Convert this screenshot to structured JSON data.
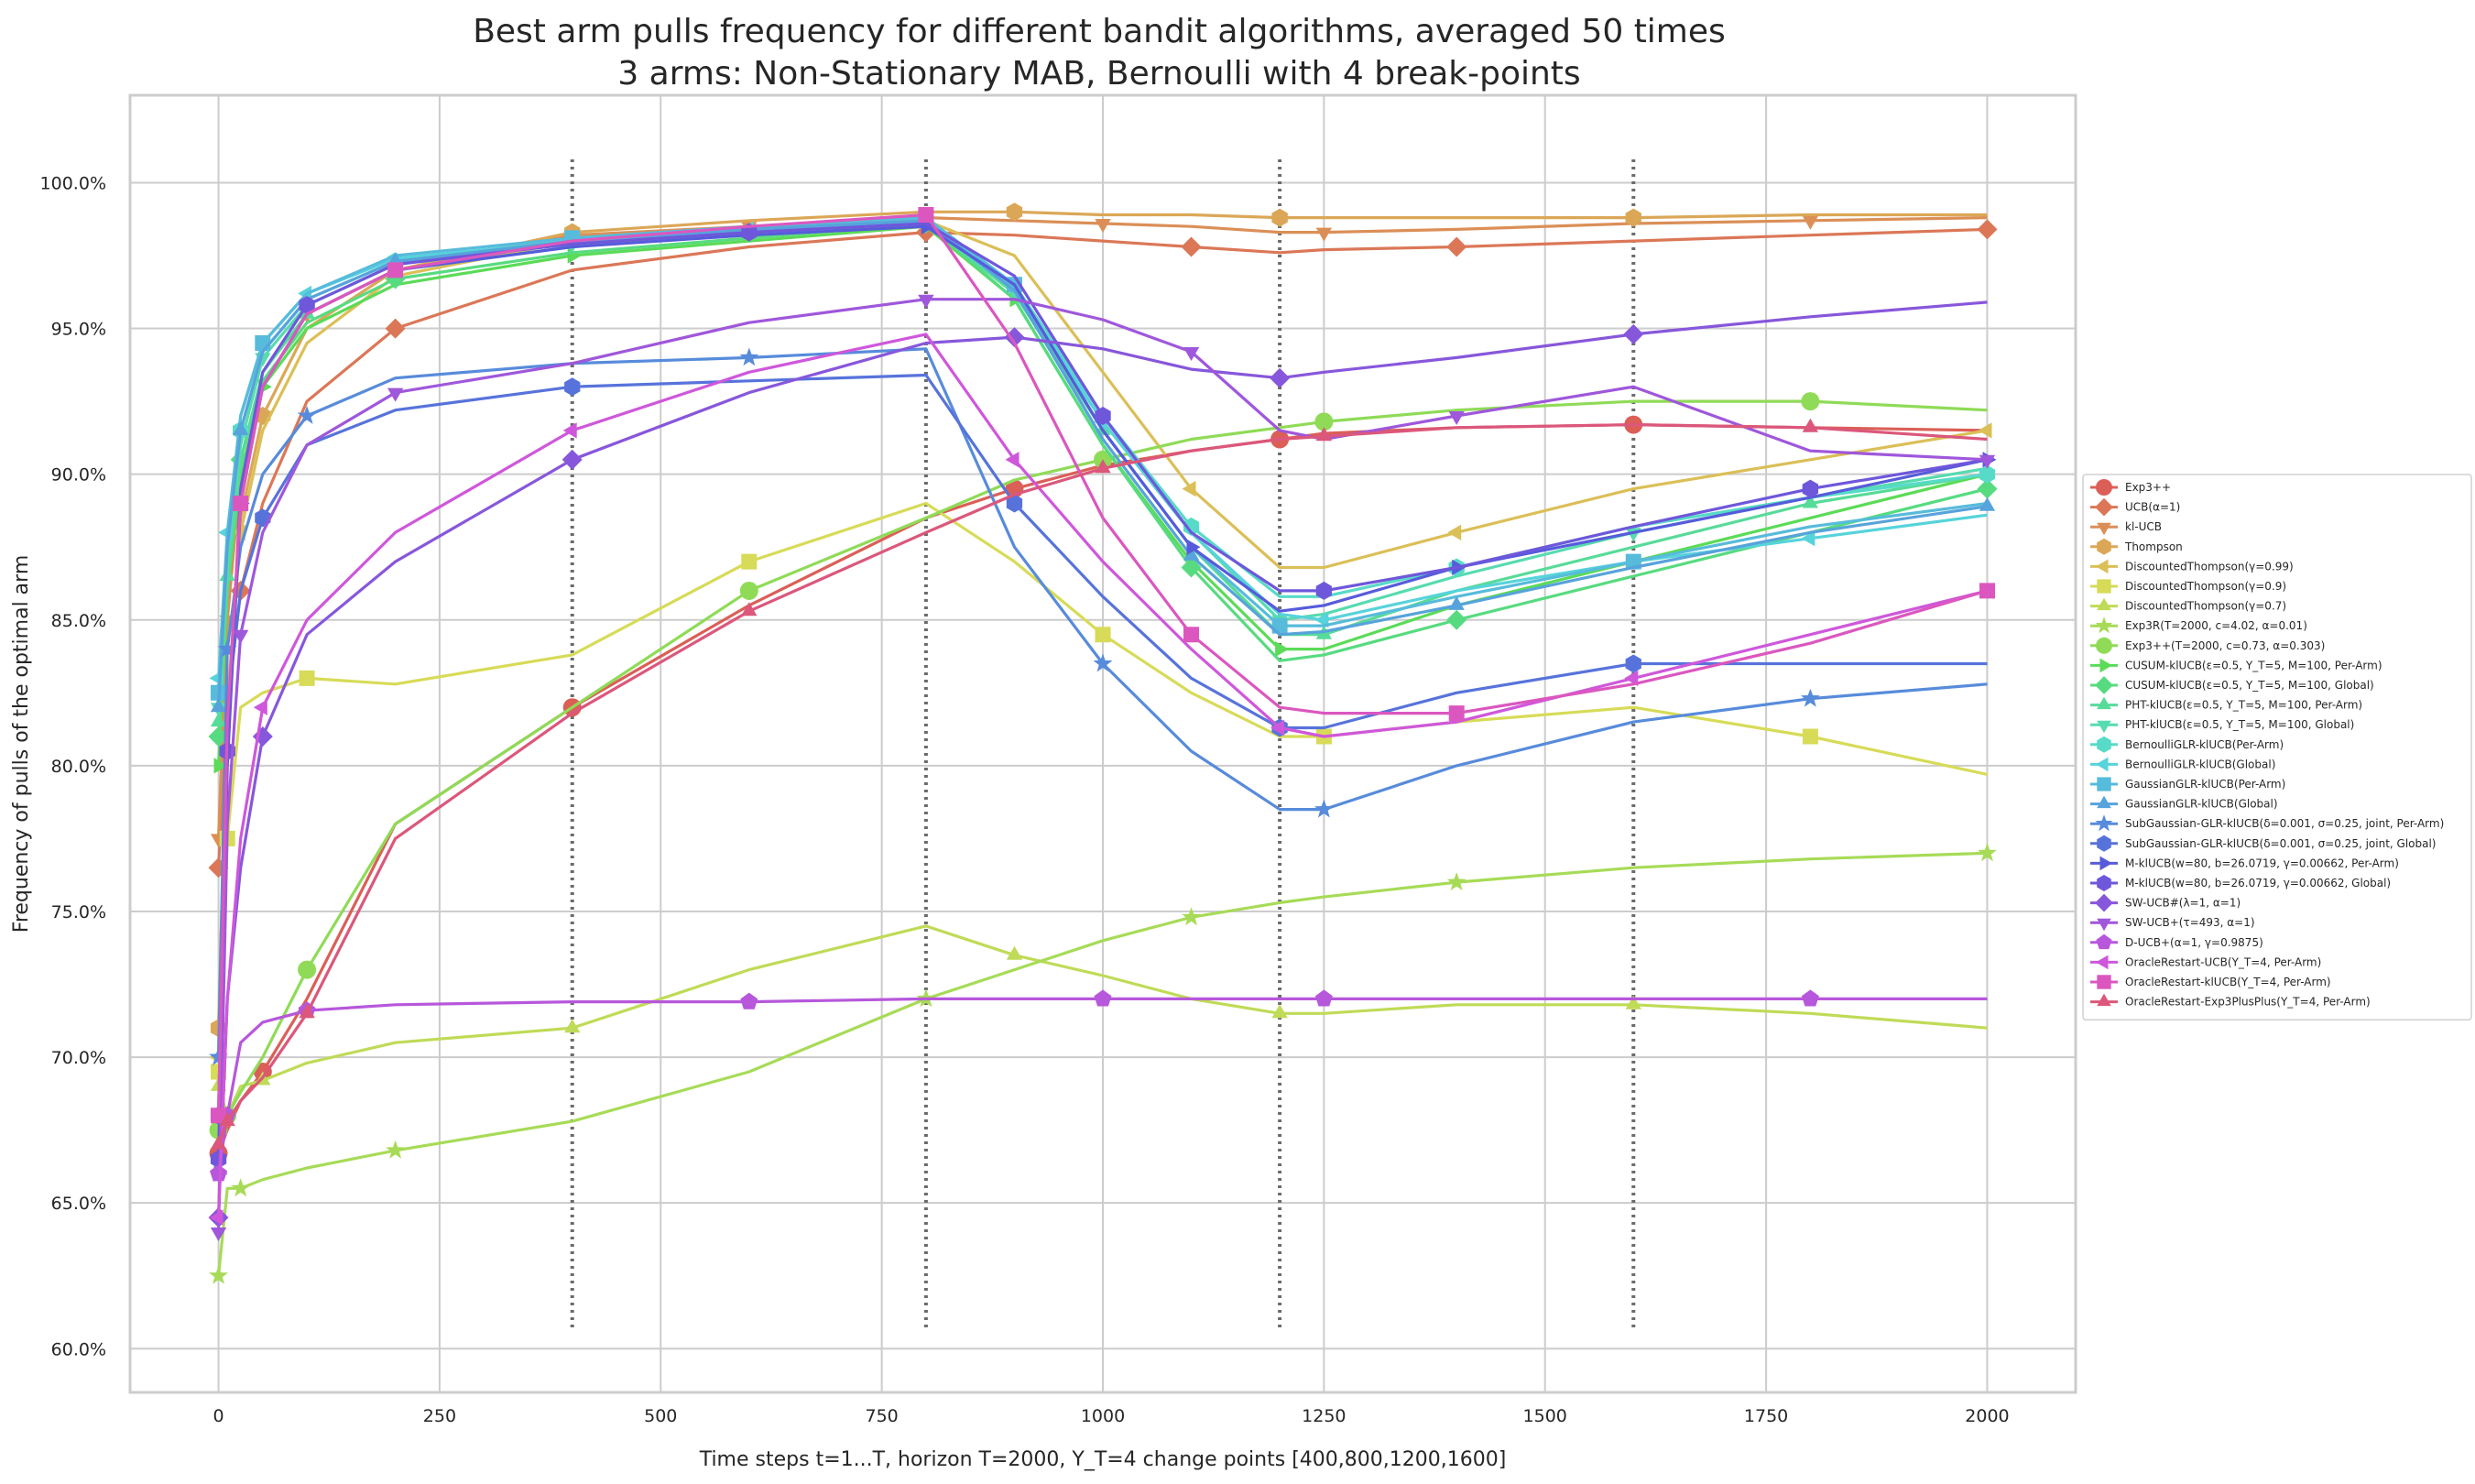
{
  "chart_data": {
    "type": "line",
    "title_line1": "Best arm pulls frequency for different bandit algorithms, averaged 50 times",
    "title_line2": "3 arms: Non-Stationary MAB, Bernoulli with 4 break-points",
    "xlabel": "Time steps t=1...T, horizon T=2000, Υ_T=4 change points [400,800,1200,1600]",
    "ylabel": "Frequency of pulls of the optimal arm",
    "xlim": [
      -100,
      2100
    ],
    "ylim": [
      58.5,
      103
    ],
    "x_ticks": [
      0,
      250,
      500,
      750,
      1000,
      1250,
      1500,
      1750,
      2000
    ],
    "y_ticks": [
      60,
      65,
      70,
      75,
      80,
      85,
      90,
      95,
      100
    ],
    "y_tick_labels": [
      "60.0%",
      "65.0%",
      "70.0%",
      "75.0%",
      "80.0%",
      "85.0%",
      "90.0%",
      "95.0%",
      "100.0%"
    ],
    "breakpoints": [
      400,
      800,
      1200,
      1600
    ],
    "grid": true,
    "legend_position": "right",
    "x": [
      0,
      10,
      25,
      50,
      100,
      200,
      400,
      600,
      800,
      900,
      1000,
      1100,
      1200,
      1250,
      1400,
      1600,
      1800,
      2000
    ],
    "series": [
      {
        "name": "Exp3++",
        "color": "#db5f57",
        "marker": "circle",
        "values": [
          66.7,
          67.5,
          68.5,
          69.5,
          72.0,
          78.0,
          82.0,
          85.5,
          88.5,
          89.5,
          90.3,
          90.8,
          91.2,
          91.4,
          91.6,
          91.7,
          91.6,
          91.5
        ]
      },
      {
        "name": "UCB(α=1)",
        "color": "#db7757",
        "marker": "diamond",
        "values": [
          76.5,
          82.0,
          86.0,
          89.0,
          92.5,
          95.0,
          97.0,
          97.8,
          98.3,
          98.2,
          98.0,
          97.8,
          97.6,
          97.7,
          97.8,
          98.0,
          98.2,
          98.4
        ]
      },
      {
        "name": "kl-UCB",
        "color": "#db8f57",
        "marker": "triangle-down",
        "values": [
          77.5,
          85.0,
          90.0,
          93.0,
          95.5,
          97.0,
          98.2,
          98.5,
          98.8,
          98.7,
          98.6,
          98.5,
          98.3,
          98.3,
          98.4,
          98.6,
          98.7,
          98.8
        ]
      },
      {
        "name": "Thompson",
        "color": "#dba757",
        "marker": "hex",
        "values": [
          71.0,
          82.0,
          88.5,
          92.0,
          95.0,
          97.0,
          98.3,
          98.7,
          99.0,
          99.0,
          98.9,
          98.9,
          98.8,
          98.8,
          98.8,
          98.8,
          98.9,
          98.9
        ]
      },
      {
        "name": "DiscountedThompson(γ=0.99)",
        "color": "#dbbf57",
        "marker": "triangle-left",
        "values": [
          70.0,
          82.0,
          88.0,
          91.5,
          94.5,
          96.8,
          98.0,
          98.5,
          98.7,
          97.5,
          93.5,
          89.5,
          86.8,
          86.8,
          88.0,
          89.5,
          90.5,
          91.5
        ]
      },
      {
        "name": "DiscountedThompson(γ=0.9)",
        "color": "#d7db57",
        "marker": "square",
        "values": [
          69.5,
          77.5,
          82.0,
          82.5,
          83.0,
          82.8,
          83.8,
          87.0,
          89.0,
          87.0,
          84.5,
          82.5,
          81.0,
          81.0,
          81.5,
          82.0,
          81.0,
          79.7
        ]
      },
      {
        "name": "DiscountedThompson(γ=0.7)",
        "color": "#bfdb57",
        "marker": "triangle-up",
        "values": [
          69.0,
          68.0,
          69.0,
          69.2,
          69.8,
          70.5,
          71.0,
          73.0,
          74.5,
          73.5,
          72.8,
          72.0,
          71.5,
          71.5,
          71.8,
          71.8,
          71.5,
          71.0
        ]
      },
      {
        "name": "Exp3R(T=2000, c=4.02, α=0.01)",
        "color": "#a7db57",
        "marker": "star",
        "values": [
          62.5,
          65.5,
          65.5,
          65.8,
          66.2,
          66.8,
          67.8,
          69.5,
          72.0,
          73.0,
          74.0,
          74.8,
          75.3,
          75.5,
          76.0,
          76.5,
          76.8,
          77.0
        ]
      },
      {
        "name": "Exp3++(T=2000, c=0.73, α=0.303)",
        "color": "#8fdb57",
        "marker": "circle",
        "values": [
          67.5,
          68.0,
          68.8,
          70.0,
          73.0,
          78.0,
          82.0,
          86.0,
          88.5,
          89.8,
          90.5,
          91.2,
          91.6,
          91.8,
          92.2,
          92.5,
          92.5,
          92.2
        ]
      },
      {
        "name": "CUSUM-klUCB(ε=0.5, Υ_T=5, M=100, Per-Arm)",
        "color": "#5bdb57",
        "marker": "triangle-right",
        "values": [
          80.0,
          86.0,
          90.0,
          93.0,
          95.0,
          96.5,
          97.5,
          98.0,
          98.5,
          96.0,
          91.0,
          87.0,
          84.0,
          84.0,
          85.5,
          87.0,
          88.5,
          90.0
        ]
      },
      {
        "name": "CUSUM-klUCB(ε=0.5, Υ_T=5, M=100, Global)",
        "color": "#57db80",
        "marker": "diamond",
        "values": [
          81.0,
          86.0,
          90.5,
          93.2,
          95.2,
          96.7,
          97.6,
          98.1,
          98.6,
          96.0,
          91.0,
          86.8,
          83.6,
          83.8,
          85.0,
          86.5,
          88.0,
          89.5
        ]
      },
      {
        "name": "PHT-klUCB(ε=0.5, Υ_T=5, M=100, Per-Arm)",
        "color": "#57db98",
        "marker": "triangle-up",
        "values": [
          81.5,
          86.5,
          90.5,
          93.5,
          95.5,
          97.0,
          97.8,
          98.3,
          98.6,
          96.2,
          91.5,
          87.5,
          84.5,
          84.5,
          86.0,
          87.5,
          89.0,
          90.0
        ]
      },
      {
        "name": "PHT-klUCB(ε=0.5, Υ_T=5, M=100, Global)",
        "color": "#57dbb0",
        "marker": "triangle-down",
        "values": [
          82.0,
          87.0,
          91.0,
          94.0,
          95.8,
          97.2,
          97.9,
          98.3,
          98.6,
          96.3,
          91.8,
          88.0,
          85.0,
          85.2,
          86.5,
          88.0,
          89.2,
          90.2
        ]
      },
      {
        "name": "BernoulliGLR-klUCB(Per-Arm)",
        "color": "#57dbc8",
        "marker": "hex",
        "values": [
          82.5,
          87.5,
          91.5,
          94.2,
          96.0,
          97.3,
          98.0,
          98.4,
          98.7,
          96.5,
          92.0,
          88.2,
          85.8,
          85.8,
          86.8,
          88.2,
          89.2,
          90.0
        ]
      },
      {
        "name": "BernoulliGLR-klUCB(Global)",
        "color": "#57d3db",
        "marker": "triangle-left",
        "values": [
          83.0,
          88.0,
          92.0,
          94.5,
          96.2,
          97.4,
          98.0,
          98.4,
          98.7,
          96.4,
          91.8,
          88.0,
          85.2,
          85.0,
          86.0,
          87.0,
          87.8,
          88.6
        ]
      },
      {
        "name": "GaussianGLR-klUCB(Per-Arm)",
        "color": "#57bbdb",
        "marker": "square",
        "values": [
          82.5,
          88.0,
          92.0,
          94.5,
          96.2,
          97.5,
          98.1,
          98.5,
          98.8,
          96.5,
          91.5,
          87.5,
          84.8,
          84.8,
          85.8,
          87.0,
          88.2,
          89.0
        ]
      },
      {
        "name": "GaussianGLR-klUCB(Global)",
        "color": "#57a3db",
        "marker": "triangle-up",
        "values": [
          82.0,
          87.5,
          91.5,
          94.2,
          96.0,
          97.3,
          98.0,
          98.4,
          98.7,
          96.3,
          91.2,
          87.2,
          84.5,
          84.6,
          85.5,
          86.8,
          88.0,
          88.9
        ]
      },
      {
        "name": "SubGaussian-GLR-klUCB(δ=0.001, σ=0.25, joint, Per-Arm)",
        "color": "#578bdb",
        "marker": "star",
        "values": [
          70.0,
          84.0,
          87.5,
          90.0,
          92.0,
          93.3,
          93.8,
          94.0,
          94.3,
          87.5,
          83.5,
          80.5,
          78.5,
          78.5,
          80.0,
          81.5,
          82.3,
          82.8
        ]
      },
      {
        "name": "SubGaussian-GLR-klUCB(δ=0.001, σ=0.25, joint, Global)",
        "color": "#5773db",
        "marker": "hex",
        "values": [
          68.0,
          82.0,
          86.0,
          88.5,
          91.0,
          92.2,
          93.0,
          93.2,
          93.4,
          89.0,
          85.8,
          83.0,
          81.3,
          81.3,
          82.5,
          83.5,
          83.5,
          83.5
        ]
      },
      {
        "name": "M-klUCB(w=80, b=26.0719, γ=0.00662, Per-Arm)",
        "color": "#575bdb",
        "marker": "triangle-right",
        "values": [
          66.0,
          80.0,
          89.0,
          93.0,
          95.5,
          97.0,
          97.8,
          98.2,
          98.5,
          96.5,
          91.5,
          87.5,
          85.3,
          85.5,
          86.8,
          88.0,
          89.2,
          90.5
        ]
      },
      {
        "name": "M-klUCB(w=80, b=26.0719, γ=0.00662, Global)",
        "color": "#6f57db",
        "marker": "hex",
        "values": [
          66.5,
          80.5,
          89.5,
          93.5,
          95.8,
          97.2,
          97.9,
          98.3,
          98.6,
          96.8,
          92.0,
          88.0,
          86.0,
          86.0,
          86.8,
          88.2,
          89.5,
          90.5
        ]
      },
      {
        "name": "SW-UCB#(λ=1, α=1)",
        "color": "#8757db",
        "marker": "diamond",
        "values": [
          64.5,
          72.0,
          76.5,
          81.0,
          84.5,
          87.0,
          90.5,
          92.8,
          94.5,
          94.7,
          94.3,
          93.6,
          93.3,
          93.5,
          94.0,
          94.8,
          95.4,
          95.9
        ]
      },
      {
        "name": "SW-UCB+(τ=493, α=1)",
        "color": "#9f57db",
        "marker": "triangle-down",
        "values": [
          64.0,
          78.0,
          84.5,
          88.0,
          91.0,
          92.8,
          93.8,
          95.2,
          96.0,
          96.0,
          95.3,
          94.2,
          91.5,
          91.2,
          92.0,
          93.0,
          90.8,
          90.5
        ]
      },
      {
        "name": "D-UCB+(α=1, γ=0.9875)",
        "color": "#b757db",
        "marker": "pentagon",
        "values": [
          66.0,
          68.0,
          70.5,
          71.2,
          71.6,
          71.8,
          71.9,
          71.9,
          72.0,
          72.0,
          72.0,
          72.0,
          72.0,
          72.0,
          72.0,
          72.0,
          72.0,
          72.0
        ]
      },
      {
        "name": "OracleRestart-UCB(Υ_T=4, Per-Arm)",
        "color": "#cf57db",
        "marker": "triangle-left",
        "values": [
          64.5,
          72.0,
          77.5,
          82.0,
          85.0,
          88.0,
          91.5,
          93.5,
          94.8,
          90.5,
          87.0,
          84.0,
          81.3,
          81.0,
          81.5,
          83.0,
          84.5,
          86.0
        ]
      },
      {
        "name": "OracleRestart-klUCB(Υ_T=4, Per-Arm)",
        "color": "#db57bf",
        "marker": "square",
        "values": [
          68.0,
          81.5,
          89.0,
          93.0,
          95.5,
          97.0,
          98.0,
          98.5,
          98.9,
          94.5,
          88.5,
          84.5,
          82.0,
          81.8,
          81.8,
          82.8,
          84.2,
          86.0
        ]
      },
      {
        "name": "OracleRestart-Exp3PlusPlus(Υ_T=4, Per-Arm)",
        "color": "#db577b",
        "marker": "triangle-up",
        "values": [
          67.0,
          67.8,
          68.5,
          69.3,
          71.5,
          77.5,
          81.8,
          85.3,
          88.0,
          89.3,
          90.2,
          90.8,
          91.2,
          91.3,
          91.6,
          91.7,
          91.6,
          91.2
        ]
      }
    ]
  }
}
